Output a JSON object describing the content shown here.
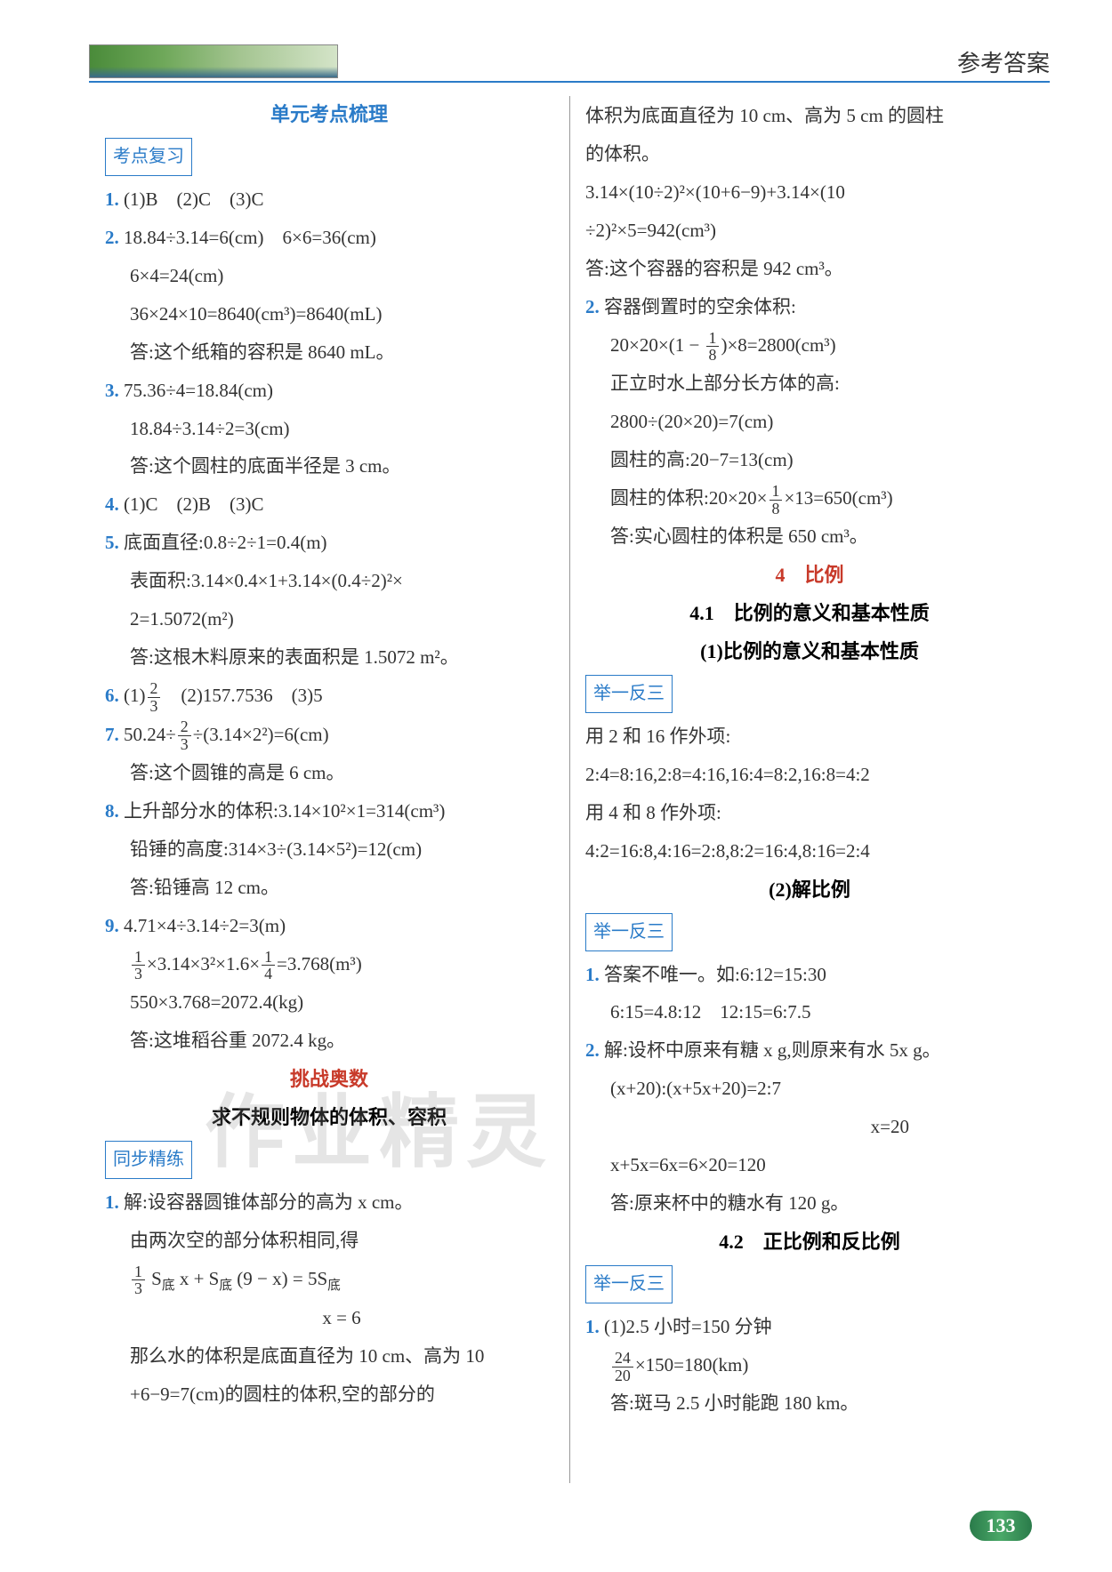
{
  "header": {
    "title": "参考答案"
  },
  "watermark": "作业精灵",
  "page_number": "133",
  "left": {
    "s1_title": "单元考点梳理",
    "review_label": "考点复习",
    "q1": "(1)B　(2)C　(3)C",
    "q2a": "18.84÷3.14=6(cm)　6×6=36(cm)",
    "q2b": "6×4=24(cm)",
    "q2c": "36×24×10=8640(cm³)=8640(mL)",
    "q2d": "答:这个纸箱的容积是 8640 mL。",
    "q3a": "75.36÷4=18.84(cm)",
    "q3b": "18.84÷3.14÷2=3(cm)",
    "q3c": "答:这个圆柱的底面半径是 3 cm。",
    "q4": "(1)C　(2)B　(3)C",
    "q5a": "底面直径:0.8÷2÷1=0.4(m)",
    "q5b": "表面积:3.14×0.4×1+3.14×(0.4÷2)²×",
    "q5c": "2=1.5072(m²)",
    "q5d": "答:这根木料原来的表面积是 1.5072 m²。",
    "q6": "　(2)157.7536　(3)5",
    "q6_pre": "(1)",
    "q7a_pre": "50.24÷",
    "q7a_post": "÷(3.14×2²)=6(cm)",
    "q7b": "答:这个圆锥的高是 6 cm。",
    "q8a": "上升部分水的体积:3.14×10²×1=314(cm³)",
    "q8b": "铅锤的高度:314×3÷(3.14×5²)=12(cm)",
    "q8c": "答:铅锤高 12 cm。",
    "q9a": "4.71×4÷3.14÷2=3(m)",
    "q9b_pre": "×3.14×3²×1.6×",
    "q9b_post": "=3.768(m³)",
    "q9c": "550×3.768=2072.4(kg)",
    "q9d": "答:这堆稻谷重 2072.4 kg。",
    "challenge_title": "挑战奥数",
    "challenge_sub": "求不规则物体的体积、容积",
    "sync_label": "同步精练",
    "p1a": "解:设容器圆锥体部分的高为 x cm。",
    "p1b": "由两次空的部分体积相同,得",
    "p1c_mid": " x + S",
    "p1c_post": " (9 − x) = 5S",
    "p1d": "x = 6",
    "p1e": "那么水的体积是底面直径为 10 cm、高为 10",
    "p1f": "+6−9=7(cm)的圆柱的体积,空的部分的"
  },
  "right": {
    "r1a": "体积为底面直径为 10 cm、高为 5 cm 的圆柱",
    "r1b": "的体积。",
    "r1c": "3.14×(10÷2)²×(10+6−9)+3.14×(10",
    "r1d": "÷2)²×5=942(cm³)",
    "r1e": "答:这个容器的容积是 942 cm³。",
    "r2a": "容器倒置时的空余体积:",
    "r2b_pre": "20×20×",
    "r2b_mid": "1 − ",
    "r2b_post": "×8=2800(cm³)",
    "r2c": "正立时水上部分长方体的高:",
    "r2d": "2800÷(20×20)=7(cm)",
    "r2e": "圆柱的高:20−7=13(cm)",
    "r2f_pre": "圆柱的体积:20×20×",
    "r2f_post": "×13=650(cm³)",
    "r2g": "答:实心圆柱的体积是 650 cm³。",
    "ch4_title": "4　比例",
    "ch41_title": "4.1　比例的意义和基本性质",
    "ch41_sub": "(1)比例的意义和基本性质",
    "ex_label": "举一反三",
    "ex1a": "用 2 和 16 作外项:",
    "ex1b": "2:4=8:16,2:8=4:16,16:4=8:2,16:8=4:2",
    "ex1c": "用 4 和 8 作外项:",
    "ex1d": "4:2=16:8,4:16=2:8,8:2=16:4,8:16=2:4",
    "ch41_2": "(2)解比例",
    "s1a": "答案不唯一。如:6:12=15:30",
    "s1b": "6:15=4.8:12　12:15=6:7.5",
    "s2a": "解:设杯中原来有糖 x g,则原来有水 5x g。",
    "s2b": "(x+20):(x+5x+20)=2:7",
    "s2c": "x=20",
    "s2d": "x+5x=6x=6×20=120",
    "s2e": "答:原来杯中的糖水有 120 g。",
    "ch42_title": "4.2　正比例和反比例",
    "p1a": "(1)2.5 小时=150 分钟",
    "p1b_post": "×150=180(km)",
    "p1c": "答:斑马 2.5 小时能跑 180 km。"
  }
}
